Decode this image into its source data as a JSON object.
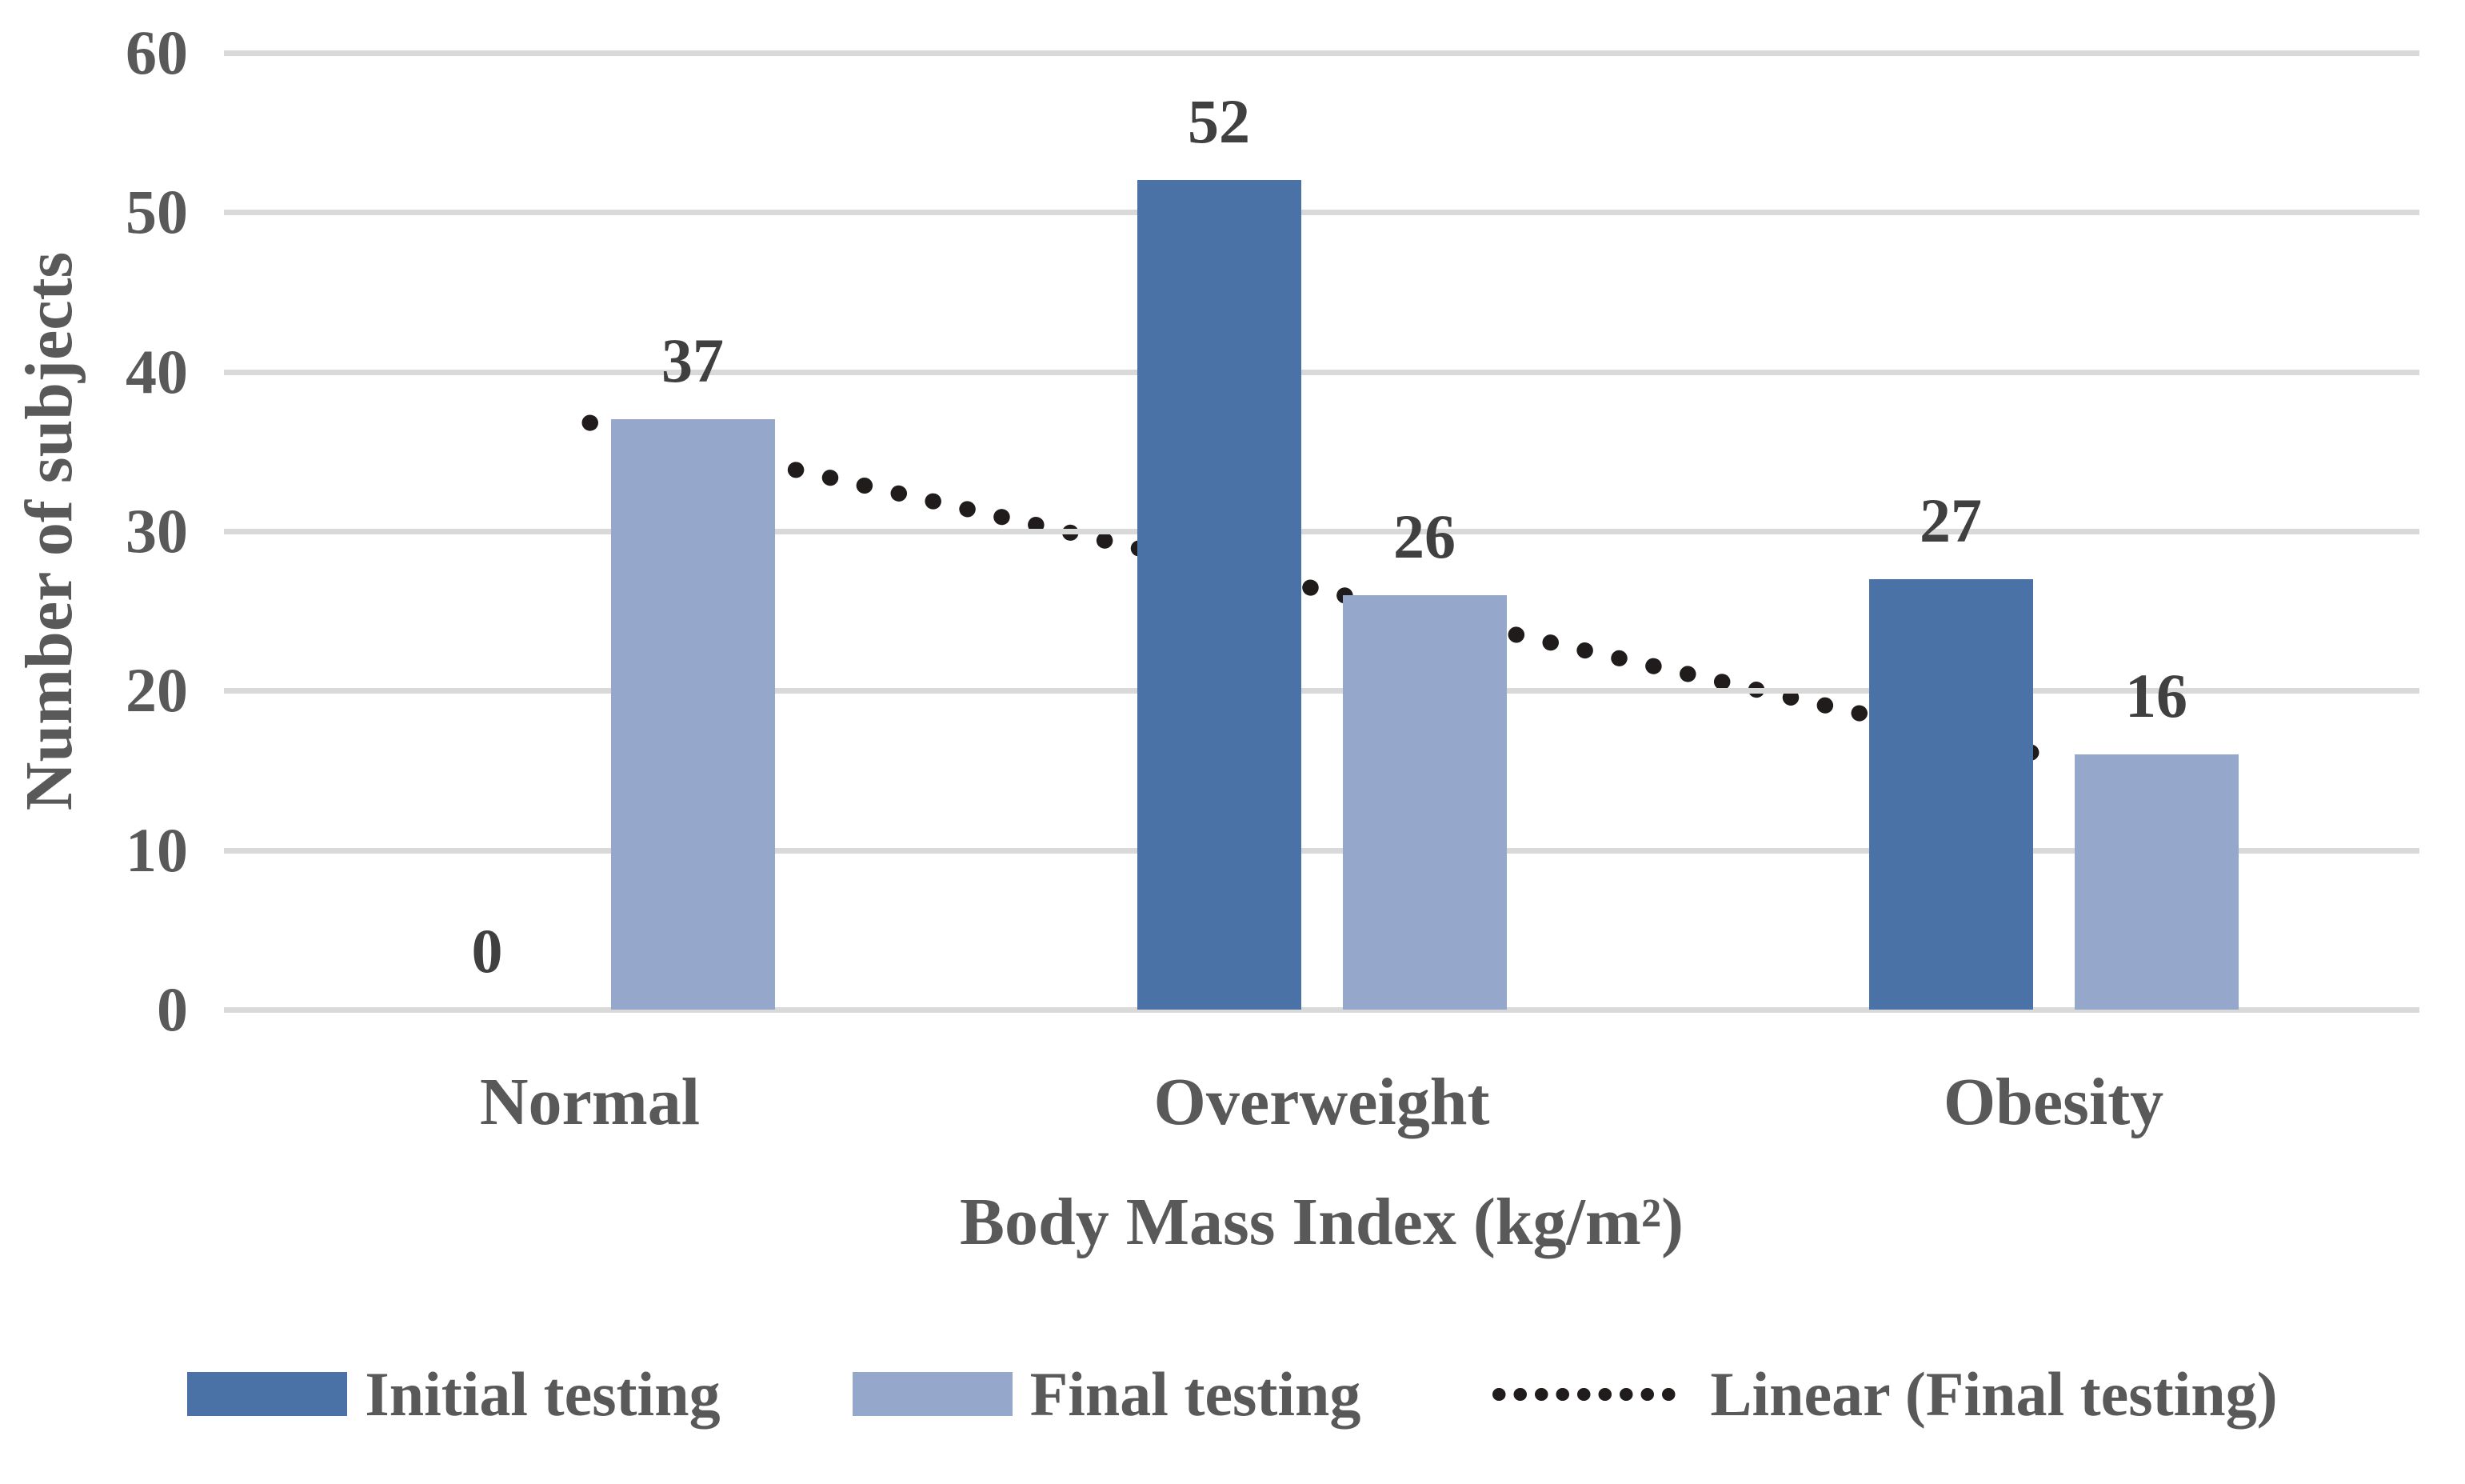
{
  "figure": {
    "background": "#ffffff",
    "text_color": "#595959",
    "data_label_color": "#404040",
    "gridline_color": "#D9D9D9"
  },
  "legend": {
    "items": [
      {
        "kind": "swatch",
        "color": "#4A72A7",
        "label": "Initial testing"
      },
      {
        "kind": "swatch",
        "color": "#95A7CB",
        "label": "Final testing"
      },
      {
        "kind": "dotted-line",
        "color": "#211C1C",
        "label": "Linear (Final testing)"
      }
    ]
  },
  "chart_data": {
    "type": "bar",
    "categories": [
      "Normal",
      "Overweight",
      "Obesity"
    ],
    "series": [
      {
        "name": "Initial testing",
        "color": "#4A72A7",
        "values": [
          0,
          52,
          27
        ]
      },
      {
        "name": "Final testing",
        "color": "#95A7CB",
        "values": [
          37,
          26,
          16
        ]
      }
    ],
    "data_labels": [
      [
        "0",
        "52",
        "27"
      ],
      [
        "37",
        "26",
        "16"
      ]
    ],
    "trendline": {
      "label": "Linear (Final testing)",
      "applies_to": "Final testing",
      "style": "dotted",
      "color": "#211C1C",
      "y_start": 36.8,
      "y_end": 15.8
    },
    "title": "",
    "xlabel": "Body Mass Index (kg/m²)",
    "ylabel": "Number of subjects",
    "ylim": [
      0,
      60
    ],
    "y_ticks": [
      "0",
      "10",
      "20",
      "30",
      "40",
      "50",
      "60"
    ],
    "grid": "horizontal",
    "legend_position": "bottom"
  }
}
